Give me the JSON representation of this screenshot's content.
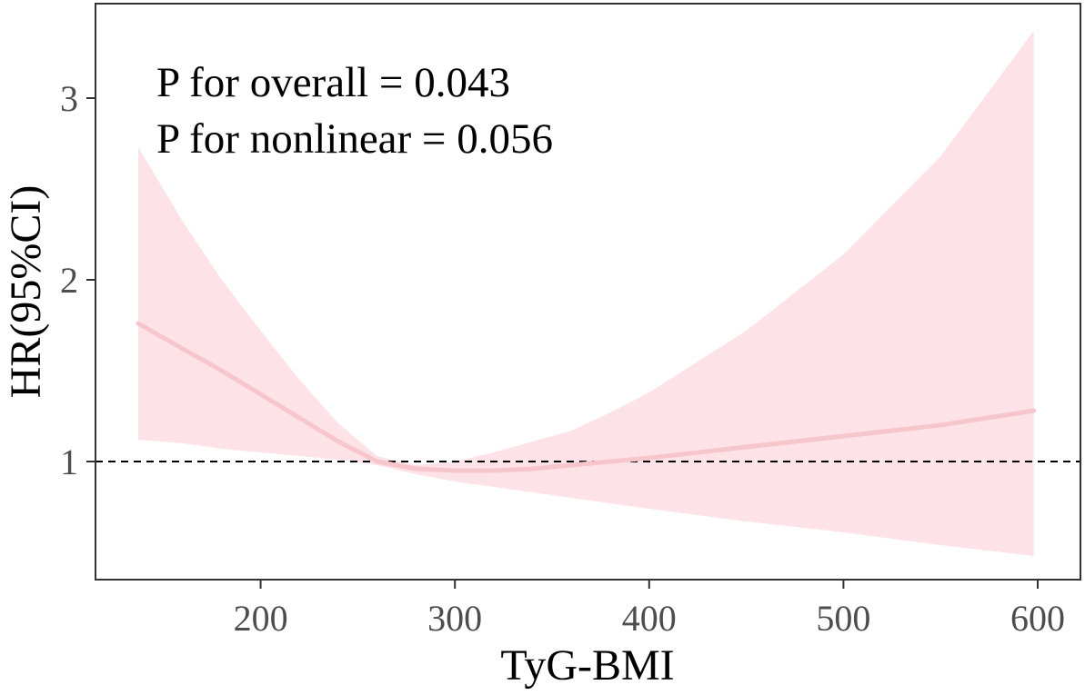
{
  "chart_data": {
    "type": "line",
    "title": "",
    "xlabel": "TyG-BMI",
    "ylabel": "HR(95%CI)",
    "xlim": [
      115,
      622
    ],
    "ylim": [
      0.35,
      3.52
    ],
    "x_ticks": [
      200,
      300,
      400,
      500,
      600
    ],
    "x_tick_labels": [
      "200",
      "300",
      "400",
      "500",
      "600"
    ],
    "y_ticks": [
      1,
      2,
      3
    ],
    "y_tick_labels": [
      "1",
      "2",
      "3"
    ],
    "grid": false,
    "reference_line": {
      "y": 1,
      "style": "dashed",
      "color": "#000000"
    },
    "annotations": [
      "P for overall = 0.043",
      "P for nonlinear = 0.056"
    ],
    "series": [
      {
        "color": "#f7c5cc",
        "band_color": "#fde3e8",
        "x": [
          137,
          160,
          180,
          200,
          220,
          240,
          260,
          280,
          300,
          320,
          340,
          360,
          380,
          400,
          450,
          500,
          550,
          598
        ],
        "y": [
          1.76,
          1.62,
          1.5,
          1.37,
          1.24,
          1.11,
          1.0,
          0.96,
          0.95,
          0.95,
          0.96,
          0.98,
          1.0,
          1.02,
          1.08,
          1.14,
          1.2,
          1.28
        ],
        "upper": [
          2.73,
          2.32,
          2.0,
          1.72,
          1.45,
          1.21,
          1.03,
          0.98,
          1.0,
          1.05,
          1.11,
          1.17,
          1.27,
          1.38,
          1.72,
          2.14,
          2.68,
          3.37
        ],
        "lower": [
          1.12,
          1.1,
          1.07,
          1.05,
          1.03,
          1.01,
          0.98,
          0.93,
          0.89,
          0.86,
          0.83,
          0.8,
          0.77,
          0.74,
          0.67,
          0.61,
          0.54,
          0.48
        ]
      }
    ]
  }
}
